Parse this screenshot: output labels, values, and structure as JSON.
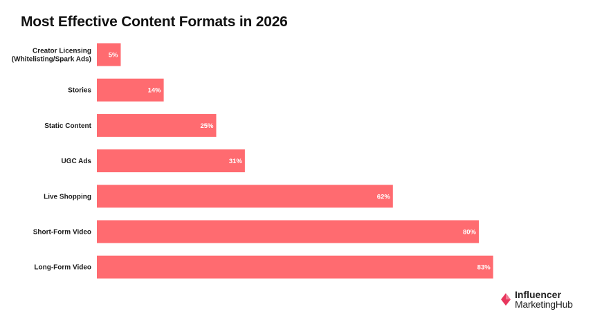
{
  "chart_data": {
    "type": "bar",
    "orientation": "horizontal",
    "title": "Most Effective Content Formats in 2026",
    "categories": [
      [
        "Creator Licensing",
        "(Whitelisting/Spark Ads)"
      ],
      [
        "Stories"
      ],
      [
        "Static Content"
      ],
      [
        "UGC Ads"
      ],
      [
        "Live Shopping"
      ],
      [
        "Short-Form Video"
      ],
      [
        "Long-Form Video"
      ]
    ],
    "values": [
      5,
      14,
      25,
      31,
      62,
      80,
      83
    ],
    "value_labels": [
      "5%",
      "14%",
      "25%",
      "31%",
      "62%",
      "80%",
      "83%"
    ],
    "xlim": [
      0,
      100
    ],
    "grid": false,
    "bar_color": "#ff6b70"
  },
  "brand": {
    "line1": "Influencer",
    "line2": "MarketingHub",
    "icon": "influencer-marketing-hub-logo-icon",
    "icon_color": "#e8365d"
  }
}
